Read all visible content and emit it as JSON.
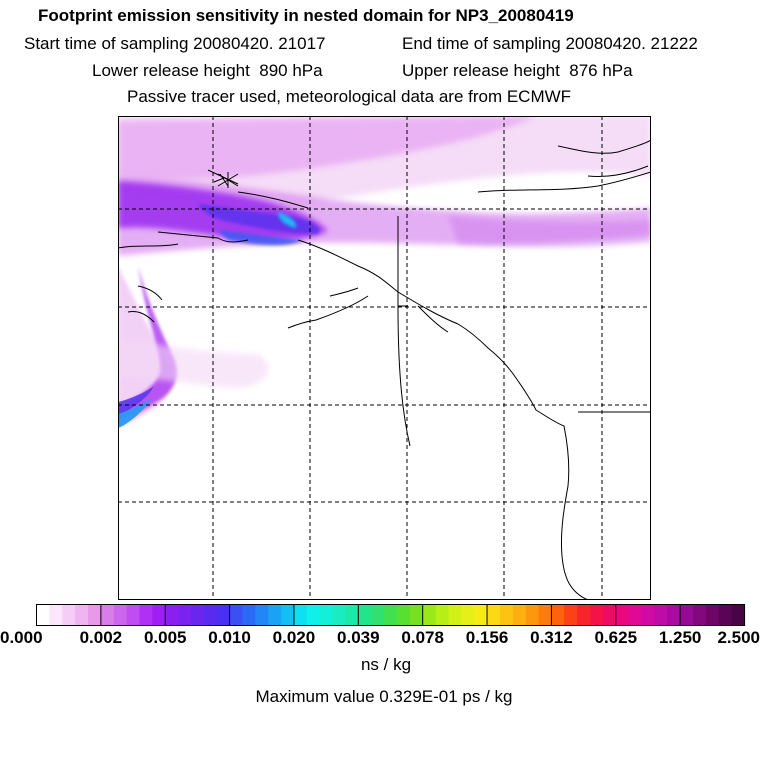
{
  "header": {
    "title": "Footprint emission sensitivity in nested domain for NP3_20080419",
    "start_time": "Start time of sampling 20080420. 21017",
    "end_time": "End time of sampling 20080420. 21222",
    "lower_height": "Lower release height  890 hPa",
    "upper_height": "Upper release height  876 hPa",
    "tracer_info": "Passive tracer used, meteorological data are from ECMWF"
  },
  "colorbar": {
    "tick_labels": [
      "0.000",
      "0.002",
      "0.005",
      "0.010",
      "0.020",
      "0.039",
      "0.078",
      "0.156",
      "0.312",
      "0.625",
      "1.250",
      "2.500"
    ],
    "units": "ns / kg",
    "colors": [
      "#ffffff",
      "#fbe6fb",
      "#f6cdf6",
      "#f0b4f0",
      "#e89ae8",
      "#d97ee6",
      "#cc66ee",
      "#bf4df2",
      "#b030f4",
      "#a11ff2",
      "#8a1ff0",
      "#7a22ee",
      "#6a26ef",
      "#5a2af0",
      "#4a30f0",
      "#3a50f2",
      "#2a6af4",
      "#2287f4",
      "#1aa2f4",
      "#14bdf4",
      "#0ee0f2",
      "#10f0e8",
      "#14f0d8",
      "#18ecc0",
      "#1ce8a8",
      "#22e48a",
      "#30e070",
      "#40e050",
      "#58e030",
      "#78e020",
      "#9ae81a",
      "#b8ee18",
      "#d0f018",
      "#e6f018",
      "#f6ea18",
      "#fada16",
      "#fcc412",
      "#fdae10",
      "#fe960e",
      "#fe7c0c",
      "#fe620c",
      "#fb4216",
      "#f8242c",
      "#f41246",
      "#ef0a64",
      "#ea087e",
      "#e00896",
      "#d00aa4",
      "#be0ca8",
      "#aa0aa2",
      "#960a96",
      "#82087e",
      "#6e0668",
      "#5a0456",
      "#480444"
    ]
  },
  "max_value": "Maximum value  0.329E-01 ps / kg"
}
